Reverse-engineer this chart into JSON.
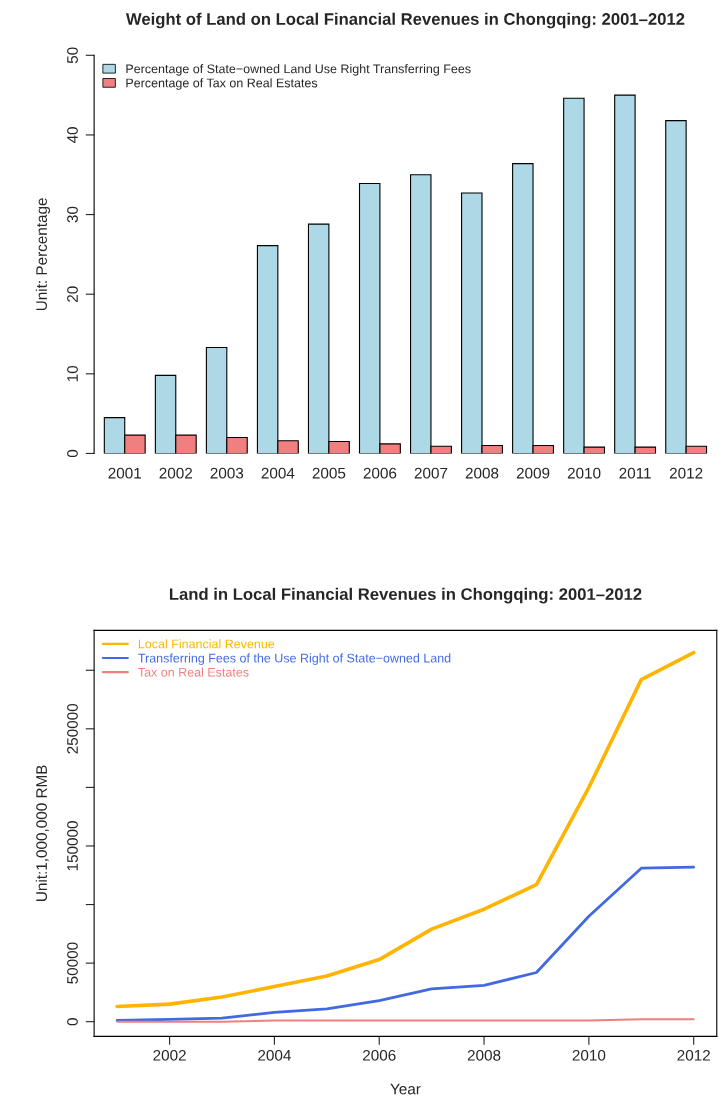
{
  "chart_data": [
    {
      "type": "bar",
      "title": "Weight of Land on Local Financial Revenues in Chongqing: 2001–2012",
      "ylabel": "Unit: Percentage",
      "categories": [
        "2001",
        "2002",
        "2003",
        "2004",
        "2005",
        "2006",
        "2007",
        "2008",
        "2009",
        "2010",
        "2011",
        "2012"
      ],
      "series": [
        {
          "name": "Percentage of State−owned Land Use Right Transferring Fees",
          "color": "#add8e6",
          "values": [
            4.5,
            9.8,
            13.3,
            26.1,
            28.8,
            33.9,
            35.0,
            32.7,
            36.4,
            44.6,
            45.0,
            41.8
          ]
        },
        {
          "name": "Percentage of Tax on Real Estates",
          "color": "#f08080",
          "values": [
            2.3,
            2.3,
            2.0,
            1.6,
            1.5,
            1.2,
            0.9,
            1.0,
            1.0,
            0.8,
            0.8,
            0.9
          ]
        }
      ],
      "ylim": [
        0,
        50
      ],
      "yticks": [
        0,
        10,
        20,
        30,
        40,
        50
      ],
      "legend": "top left",
      "grid": false
    },
    {
      "type": "line",
      "title": "Land in Local Financial Revenues in Chongqing: 2001–2012",
      "xlabel": "Year",
      "ylabel": "Unit:1,000,000 RMB",
      "x": [
        2001,
        2002,
        2003,
        2004,
        2005,
        2006,
        2007,
        2008,
        2009,
        2010,
        2011,
        2012
      ],
      "series": [
        {
          "name": "Local Financial Revenue",
          "color": "#ffb400",
          "values": [
            13000,
            15000,
            21000,
            30000,
            39000,
            53000,
            79000,
            96000,
            117000,
            200000,
            292000,
            315000
          ]
        },
        {
          "name": "Transferring Fees of the Use Right of State−owned Land",
          "color": "#4169e1",
          "values": [
            1000,
            2000,
            3000,
            8000,
            11000,
            18000,
            28000,
            31000,
            42000,
            90000,
            131000,
            132000
          ]
        },
        {
          "name": "Tax on Real Estates",
          "color": "#f08080",
          "values": [
            0,
            0,
            0,
            1000,
            1000,
            1000,
            1000,
            1000,
            1000,
            1000,
            2000,
            2000
          ]
        }
      ],
      "xlim": [
        2000.56,
        2012.44
      ],
      "xticks": [
        2002,
        2004,
        2006,
        2008,
        2010,
        2012
      ],
      "ylim": [
        -12500,
        334000
      ],
      "yticks": [
        0,
        50000,
        {
          "value": 100000,
          "label": null
        },
        150000,
        {
          "value": 200000,
          "label": null
        },
        250000,
        {
          "value": 300000,
          "label": null
        }
      ],
      "legend": "top left",
      "grid": false,
      "line_style": "solid",
      "marker": "none"
    }
  ]
}
